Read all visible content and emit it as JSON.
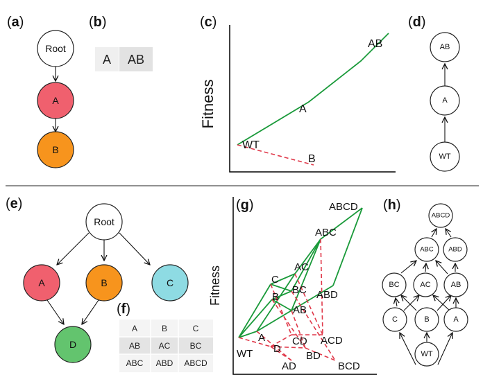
{
  "panel_labels": {
    "a": "a",
    "b": "b",
    "c": "c",
    "d": "d",
    "e": "e",
    "f": "f",
    "g": "g",
    "h": "h"
  },
  "panel_a": {
    "root": "Root",
    "node1": "A",
    "node2": "B"
  },
  "panel_b": {
    "cells": [
      "A",
      "AB"
    ]
  },
  "panel_c": {
    "ylabel": "Fitness",
    "labels": {
      "wt": "WT",
      "a": "A",
      "ab": "AB",
      "b": "B"
    }
  },
  "panel_d": {
    "nodes": {
      "top": "AB",
      "mid": "A",
      "bottom": "WT"
    }
  },
  "panel_e": {
    "root": "Root",
    "a": "A",
    "b": "B",
    "c": "C",
    "d": "D"
  },
  "panel_f": {
    "rows": [
      [
        "A",
        "B",
        "C"
      ],
      [
        "AB",
        "AC",
        "BC"
      ],
      [
        "ABC",
        "ABD",
        "ABCD"
      ]
    ]
  },
  "panel_g": {
    "ylabel": "Fitness",
    "labels": {
      "wt": "WT",
      "a": "A",
      "b": "B",
      "c": "C",
      "d": "D",
      "ab": "AB",
      "ac": "AC",
      "bc": "BC",
      "ad": "AD",
      "bd": "BD",
      "cd": "CD",
      "abc": "ABC",
      "abd": "ABD",
      "acd": "ACD",
      "bcd": "BCD",
      "abcd": "ABCD"
    }
  },
  "panel_h": {
    "nodes": {
      "abcd": "ABCD",
      "abc": "ABC",
      "abd": "ABD",
      "bc": "BC",
      "ac": "AC",
      "ab": "AB",
      "c": "C",
      "b": "B",
      "a": "A",
      "wt": "WT"
    }
  },
  "colors": {
    "red_node": "#f0606e",
    "orange_node": "#f7941d",
    "cyan_node": "#8edbe3",
    "green_node": "#63c46e",
    "green_line": "#1a9a3a",
    "red_dash": "#e0394a"
  }
}
